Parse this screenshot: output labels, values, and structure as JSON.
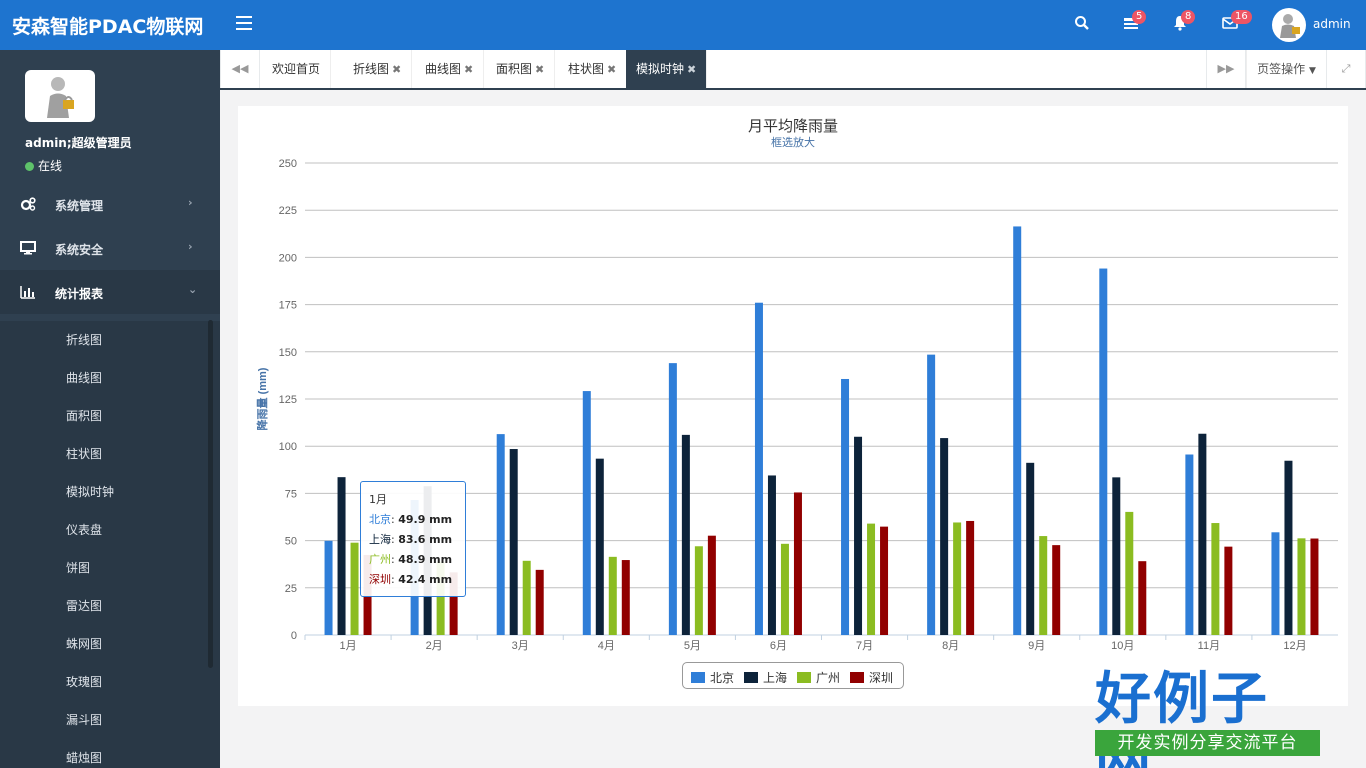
{
  "header": {
    "brand": "安森智能PDAC物联网",
    "messages_badge": "5",
    "notifications_badge": "8",
    "mail_badge": "16",
    "username": "admin",
    "color": "#1e74cf"
  },
  "sidebar": {
    "user_name": "admin;超级管理员",
    "status": "在线",
    "menus": [
      {
        "label": "系统管理",
        "icon": "gears-icon"
      },
      {
        "label": "系统安全",
        "icon": "monitor-icon"
      },
      {
        "label": "统计报表",
        "icon": "bar-chart-icon"
      }
    ],
    "sub_items": [
      "折线图",
      "曲线图",
      "面积图",
      "柱状图",
      "模拟时钟",
      "仪表盘",
      "饼图",
      "雷达图",
      "蛛网图",
      "玫瑰图",
      "漏斗图",
      "蜡烛图"
    ]
  },
  "tabs": {
    "items": [
      "欢迎首页",
      "折线图",
      "曲线图",
      "面积图",
      "柱状图",
      "模拟时钟"
    ],
    "active": "模拟时钟",
    "close_glyph": "✖",
    "ops_label": "页签操作"
  },
  "chart_data": {
    "type": "bar",
    "title": "月平均降雨量",
    "subtitle": "框选放大",
    "xlabel": "",
    "ylabel": "降雨量 (mm)",
    "ylim": [
      0,
      250
    ],
    "yticks": [
      0,
      25,
      50,
      75,
      100,
      125,
      150,
      175,
      200,
      225,
      250
    ],
    "grid": true,
    "legend_position": "bottom-center",
    "categories": [
      "1月",
      "2月",
      "3月",
      "4月",
      "5月",
      "6月",
      "7月",
      "8月",
      "9月",
      "10月",
      "11月",
      "12月"
    ],
    "series": [
      {
        "name": "北京",
        "color": "#2f7ed8",
        "values": [
          49.9,
          71.5,
          106.4,
          129.2,
          144.0,
          176.0,
          135.6,
          148.5,
          216.4,
          194.1,
          95.6,
          54.4
        ]
      },
      {
        "name": "上海",
        "color": "#0d233a",
        "values": [
          83.6,
          78.8,
          98.5,
          93.4,
          106.0,
          84.5,
          105.0,
          104.3,
          91.2,
          83.5,
          106.6,
          92.3
        ]
      },
      {
        "name": "广州",
        "color": "#8bbc21",
        "values": [
          48.9,
          38.8,
          39.3,
          41.4,
          47.0,
          48.3,
          59.0,
          59.6,
          52.4,
          65.2,
          59.3,
          51.2
        ]
      },
      {
        "name": "深圳",
        "color": "#910000",
        "values": [
          42.4,
          33.2,
          34.5,
          39.7,
          52.6,
          75.5,
          57.4,
          60.4,
          47.6,
          39.1,
          46.8,
          51.1
        ]
      }
    ],
    "tooltip": {
      "category": "1月",
      "rows": [
        {
          "name": "北京",
          "value": "49.9 mm",
          "color": "#2f7ed8"
        },
        {
          "name": "上海",
          "value": "83.6 mm",
          "color": "#0d233a"
        },
        {
          "name": "广州",
          "value": "48.9 mm",
          "color": "#8bbc21"
        },
        {
          "name": "深圳",
          "value": "42.4 mm",
          "color": "#910000"
        }
      ]
    }
  },
  "watermark": {
    "title": "好例子网",
    "subtitle": "开发实例分享交流平台"
  }
}
